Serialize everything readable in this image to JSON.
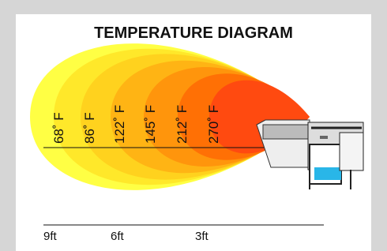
{
  "title": "TEMPERATURE DIAGRAM",
  "temperatures": [
    "68˚ F",
    "86˚ F",
    "122˚ F",
    "145˚ F",
    "212˚ F",
    "270˚ F"
  ],
  "distances": [
    "9ft",
    "6ft",
    "3ft"
  ]
}
